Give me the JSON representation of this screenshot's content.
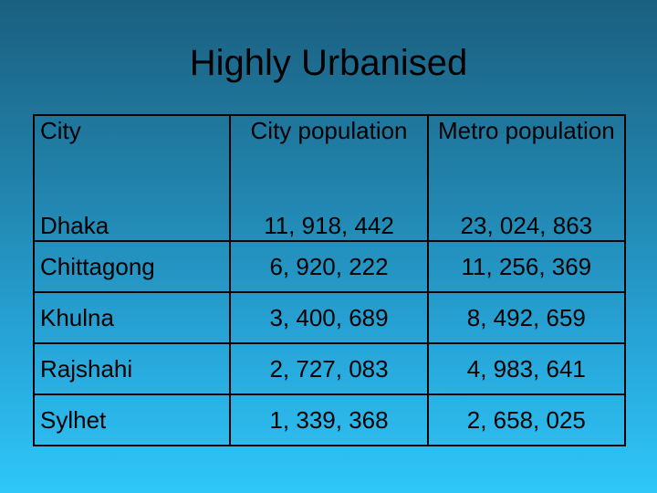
{
  "slide": {
    "title": "Highly Urbanised"
  },
  "table": {
    "headers": {
      "city": "City",
      "city_population": "City population",
      "metro_population": "Metro population"
    },
    "rows": [
      {
        "city": "Dhaka",
        "city_population": "11, 918, 442",
        "metro_population": "23, 024, 863"
      },
      {
        "city": "Chittagong",
        "city_population": "6, 920, 222",
        "metro_population": "11, 256, 369"
      },
      {
        "city": "Khulna",
        "city_population": "3, 400, 689",
        "metro_population": "8, 492, 659"
      },
      {
        "city": "Rajshahi",
        "city_population": "2, 727, 083",
        "metro_population": "4, 983, 641"
      },
      {
        "city": "Sylhet",
        "city_population": "1, 339, 368",
        "metro_population": "2, 658, 025"
      }
    ]
  },
  "colors": {
    "background_top": "#1b5f80",
    "background_bottom": "#2fc6f8",
    "text": "#000000"
  }
}
